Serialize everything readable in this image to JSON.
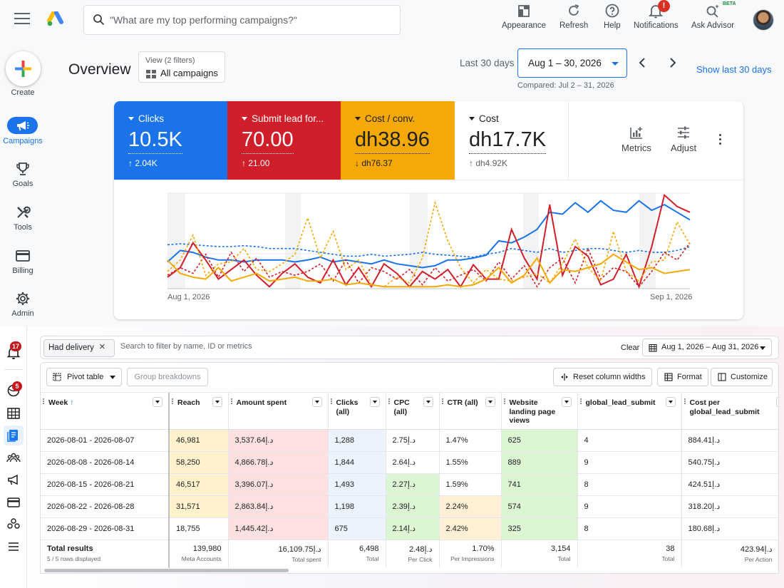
{
  "gads": {
    "search_placeholder": "\"What are my top performing campaigns?\"",
    "toolbar": {
      "appearance": "Appearance",
      "refresh": "Refresh",
      "help": "Help",
      "notifications": "Notifications",
      "notifications_badge": "!",
      "ask_advisor": "Ask Advisor",
      "beta": "BETA"
    },
    "nav": {
      "create": "Create",
      "campaigns": "Campaigns",
      "goals": "Goals",
      "tools": "Tools",
      "billing": "Billing",
      "admin": "Admin"
    },
    "page_title": "Overview",
    "view_filter": {
      "line1": "View (2 filters)",
      "line2": "All campaigns"
    },
    "date": {
      "preset": "Last 30 days",
      "range": "Aug 1 – 30, 2026",
      "compared": "Compared: Jul 2 – 31, 2026",
      "show_last": "Show last 30 days"
    },
    "metrics": [
      {
        "name": "Clicks",
        "value": "10.5K",
        "delta": "↑ 2.04K",
        "color": "#1a73e8"
      },
      {
        "name": "Submit lead for...",
        "value": "70.00",
        "delta": "↑ 21.00",
        "color": "#d01f2a"
      },
      {
        "name": "Cost / conv.",
        "value": "dh38.96",
        "delta": "↓ dh76.37",
        "color": "#f4a906"
      },
      {
        "name": "Cost",
        "value": "dh17.7K",
        "delta": "↑ dh4.92K",
        "color": "#ffffff"
      }
    ],
    "metric_tools": {
      "metrics": "Metrics",
      "adjust": "Adjust"
    },
    "chart_data": {
      "type": "line",
      "x_start_label": "Aug 1, 2026",
      "x_end_label": "Sep 1, 2026",
      "series": [
        {
          "name": "Clicks",
          "color": "#1a73e8",
          "dash": false,
          "values": [
            0.28,
            0.4,
            0.38,
            0.33,
            0.3,
            0.3,
            0.28,
            0.3,
            0.3,
            0.3,
            0.28,
            0.3,
            0.33,
            0.28,
            0.3,
            0.28,
            0.26,
            0.3,
            0.26,
            0.24,
            0.22,
            0.24,
            0.3,
            0.3,
            0.32,
            0.35,
            0.5,
            0.48,
            0.54,
            0.62,
            0.8,
            0.78,
            0.9,
            0.8,
            0.92,
            0.82,
            0.8,
            0.92,
            0.82,
            0.88,
            0.8,
            0.72
          ]
        },
        {
          "name": "Clicks (compared)",
          "color": "#1a73e8",
          "dash": true,
          "values": [
            0.46,
            0.47,
            0.46,
            0.45,
            0.44,
            0.44,
            0.45,
            0.44,
            0.42,
            0.42,
            0.42,
            0.4,
            0.38,
            0.36,
            0.34,
            0.34,
            0.36,
            0.34,
            0.35,
            0.36,
            0.38,
            0.36,
            0.35,
            0.34,
            0.33,
            0.36,
            0.38,
            0.42,
            0.4,
            0.38,
            0.42,
            0.38,
            0.4,
            0.42,
            0.42,
            0.4,
            0.38,
            0.4,
            0.38,
            0.38,
            0.4,
            0.44
          ]
        },
        {
          "name": "Submit lead form",
          "color": "#d01f2a",
          "dash": false,
          "values": [
            0.12,
            0.22,
            0.48,
            0.3,
            0.1,
            0.2,
            0.3,
            0.14,
            0.02,
            0.16,
            0.26,
            0.12,
            0.06,
            0.3,
            0.04,
            0.22,
            0.02,
            0.26,
            0.16,
            0.02,
            0.18,
            0.1,
            0.2,
            0.02,
            0.25,
            0.1,
            0.1,
            0.62,
            0.32,
            0.1,
            0.88,
            0.14,
            0.44,
            0.34,
            0.04,
            0.1,
            0.36,
            0.02,
            0.44,
            0.98,
            0.86,
            0.8
          ]
        },
        {
          "name": "Submit lead form (compared)",
          "color": "#d01f2a",
          "dash": true,
          "values": [
            0.14,
            0.22,
            0.16,
            0.36,
            0.12,
            0.38,
            0.18,
            0.32,
            0.12,
            0.18,
            0.14,
            0.18,
            0.26,
            0.08,
            0.3,
            0.06,
            0.22,
            0.18,
            0.1,
            0.2,
            0.04,
            0.22,
            0.08,
            0.14,
            0.2,
            0.08,
            0.28,
            0.1,
            0.24,
            0.02,
            0.22,
            0.32,
            0.06,
            0.42,
            0.1,
            0.22,
            0.18,
            0.02,
            0.18,
            0.38,
            0.3,
            0.48
          ]
        },
        {
          "name": "Cost / conv.",
          "color": "#f4a906",
          "dash": false,
          "values": [
            0.3,
            0.16,
            0.12,
            0.1,
            0.22,
            0.08,
            0.12,
            0.16,
            0.08,
            0.1,
            0.12,
            0.08,
            0.08,
            0.1,
            0.04,
            0.06,
            0.04,
            0.02,
            0.02,
            0.02,
            0.02,
            0.02,
            0.04,
            0.02,
            0.04,
            0.1,
            0.22,
            0.06,
            0.14,
            0.32,
            0.06,
            0.2,
            0.18,
            0.22,
            0.26,
            0.36,
            0.28,
            0.2,
            0.22,
            0.16,
            0.18,
            0.2
          ]
        },
        {
          "name": "Cost / conv. (compared)",
          "color": "#f4a906",
          "dash": true,
          "values": [
            0.18,
            0.3,
            0.56,
            0.14,
            0.26,
            0.28,
            0.42,
            0.2,
            0.18,
            0.26,
            0.36,
            0.74,
            0.32,
            0.6,
            0.2,
            0.3,
            0.04,
            0.02,
            0.12,
            0.06,
            0.32,
            0.9,
            0.5,
            0.22,
            0.06,
            0.2,
            0.1,
            0.08,
            0.12,
            0.16,
            0.06,
            0.26,
            0.52,
            0.22,
            0.08,
            0.6,
            0.18,
            0.08,
            0.28,
            0.3,
            0.7,
            0.46
          ]
        }
      ]
    }
  },
  "meta": {
    "sidebar_badges": {
      "notifications": "17",
      "ads": "5"
    },
    "filter_chip": "Had delivery",
    "filter_placeholder": "Search to filter by name, ID or metrics",
    "clear": "Clear",
    "date_range": "Aug 1, 2026 – Aug 31, 2026",
    "buttons": {
      "pivot": "Pivot table",
      "breakdowns": "Group breakdowns",
      "reset": "Reset column widths",
      "format": "Format",
      "customize": "Customize"
    },
    "columns": [
      "Week",
      "Reach",
      "Amount spent",
      "Clicks (all)",
      "CPC (all)",
      "CTR (all)",
      "Website landing page views",
      "global_lead_submit",
      "Cost per global_lead_submit"
    ],
    "rows": [
      [
        "2026-08-01 - 2026-08-07",
        "46,981",
        "3,537.64د.إ",
        "1,288",
        "2.75د.إ",
        "1.47%",
        "625",
        "4",
        "884.41د.إ"
      ],
      [
        "2026-08-08 - 2026-08-14",
        "58,250",
        "4,866.78د.إ",
        "1,844",
        "2.64د.إ",
        "1.55%",
        "889",
        "9",
        "540.75د.إ"
      ],
      [
        "2026-08-15 - 2026-08-21",
        "46,517",
        "3,396.07د.إ",
        "1,493",
        "2.27د.إ",
        "1.59%",
        "741",
        "8",
        "424.51د.إ"
      ],
      [
        "2026-08-22 - 2026-08-28",
        "31,571",
        "2,863.84د.إ",
        "1,198",
        "2.39د.إ",
        "2.24%",
        "574",
        "9",
        "318.20د.إ"
      ],
      [
        "2026-08-29 - 2026-08-31",
        "18,755",
        "1,445.42د.إ",
        "675",
        "2.14د.إ",
        "2.42%",
        "325",
        "8",
        "180.68د.إ"
      ]
    ],
    "totals": {
      "label": "Total results",
      "sublabel": "5 / 5 rows displayed",
      "values": [
        {
          "value": "139,980",
          "sub": "Meta Accounts"
        },
        {
          "value": "16,109.75د.إ",
          "sub": "Total spent"
        },
        {
          "value": "6,498",
          "sub": "Total"
        },
        {
          "value": "2.48د.إ",
          "sub": "Per Click"
        },
        {
          "value": "1.70%",
          "sub": "Per Impressions"
        },
        {
          "value": "3,154",
          "sub": "Total"
        },
        {
          "value": "38",
          "sub": "Total"
        },
        {
          "value": "423.94د.إ",
          "sub": "Per Action"
        }
      ]
    },
    "cell_colors": {
      "yellow": "#fff2cc",
      "pink": "#fde1e1",
      "blue": "#edf3fd",
      "green": "#dcf5d3",
      "peach": "#fef0d4"
    }
  }
}
